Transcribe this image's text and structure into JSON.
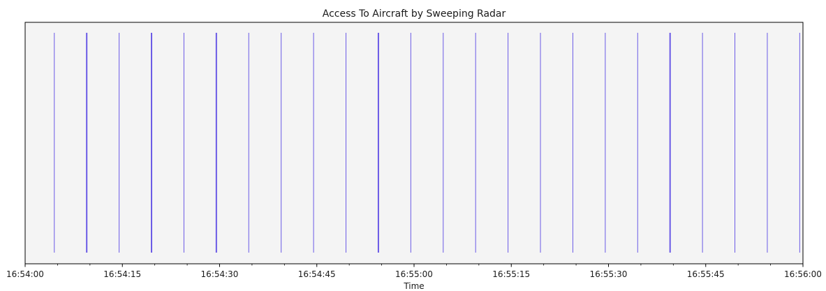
{
  "chart_data": {
    "type": "event",
    "title": "Access To Aircraft by Sweeping Radar",
    "xlabel": "Time",
    "ylabel": "",
    "xlim": [
      "16:54:00",
      "16:56:00"
    ],
    "xticks": [
      "16:54:00",
      "16:54:15",
      "16:54:30",
      "16:54:45",
      "16:55:00",
      "16:55:15",
      "16:55:30",
      "16:55:45",
      "16:56:00"
    ],
    "minor_tick_interval_seconds": 5,
    "events": [
      {
        "time": "16:54:04.5",
        "emphasis": "normal"
      },
      {
        "time": "16:54:09.5",
        "emphasis": "strong"
      },
      {
        "time": "16:54:14.5",
        "emphasis": "normal"
      },
      {
        "time": "16:54:19.5",
        "emphasis": "strong"
      },
      {
        "time": "16:54:24.5",
        "emphasis": "normal"
      },
      {
        "time": "16:54:29.5",
        "emphasis": "strong"
      },
      {
        "time": "16:54:34.5",
        "emphasis": "normal"
      },
      {
        "time": "16:54:39.5",
        "emphasis": "normal"
      },
      {
        "time": "16:54:44.5",
        "emphasis": "normal"
      },
      {
        "time": "16:54:49.5",
        "emphasis": "normal"
      },
      {
        "time": "16:54:54.5",
        "emphasis": "strong"
      },
      {
        "time": "16:54:59.5",
        "emphasis": "normal"
      },
      {
        "time": "16:55:04.5",
        "emphasis": "normal"
      },
      {
        "time": "16:55:09.5",
        "emphasis": "normal"
      },
      {
        "time": "16:55:14.5",
        "emphasis": "normal"
      },
      {
        "time": "16:55:19.5",
        "emphasis": "normal"
      },
      {
        "time": "16:55:24.5",
        "emphasis": "normal"
      },
      {
        "time": "16:55:29.5",
        "emphasis": "normal"
      },
      {
        "time": "16:55:34.5",
        "emphasis": "normal"
      },
      {
        "time": "16:55:39.5",
        "emphasis": "strong"
      },
      {
        "time": "16:55:44.5",
        "emphasis": "normal"
      },
      {
        "time": "16:55:49.5",
        "emphasis": "normal"
      },
      {
        "time": "16:55:54.5",
        "emphasis": "normal"
      },
      {
        "time": "16:55:59.5",
        "emphasis": "normal"
      }
    ],
    "grid": false,
    "legend": "none",
    "colors": {
      "event_line": "#6a5ae6",
      "plot_background": "#f4f4f4",
      "axes": "#000000"
    }
  }
}
